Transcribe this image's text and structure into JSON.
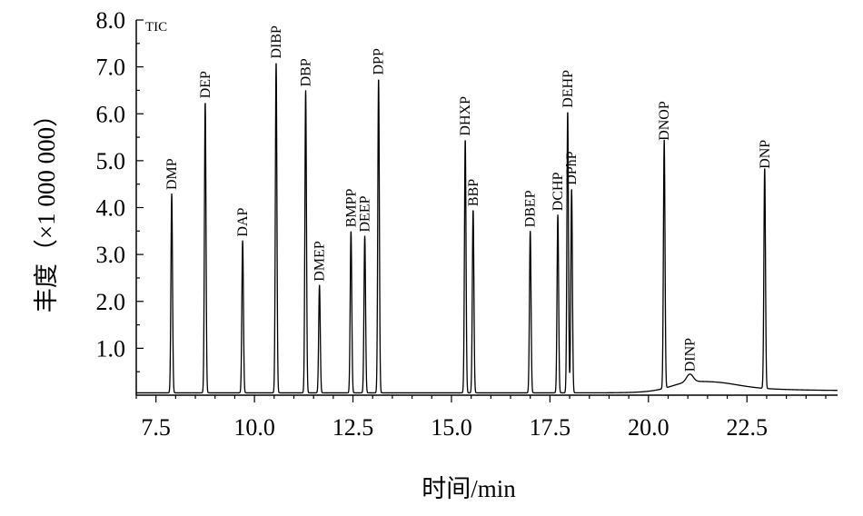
{
  "chart_data": {
    "type": "line",
    "annotation": "TIC",
    "xlabel": "时间/min",
    "ylabel": "丰度（×1 000 000）",
    "xlim": [
      7.0,
      24.8
    ],
    "ylim": [
      0,
      8.0
    ],
    "xticks": [
      7.5,
      10.0,
      12.5,
      15.0,
      17.5,
      20.0,
      22.5
    ],
    "xtick_labels": [
      "7.5",
      "10.0",
      "12.5",
      "15.0",
      "17.5",
      "20.0",
      "22.5"
    ],
    "yticks": [
      1.0,
      2.0,
      3.0,
      4.0,
      5.0,
      6.0,
      7.0,
      8.0
    ],
    "ytick_labels": [
      "1.0",
      "2.0",
      "3.0",
      "4.0",
      "5.0",
      "6.0",
      "7.0",
      "8.0"
    ],
    "baseline": 0.05,
    "peaks": [
      {
        "label": "DMP",
        "x": 7.9,
        "y": 4.3
      },
      {
        "label": "DEP",
        "x": 8.75,
        "y": 6.25
      },
      {
        "label": "DAP",
        "x": 9.7,
        "y": 3.3
      },
      {
        "label": "DIBP",
        "x": 10.55,
        "y": 7.1
      },
      {
        "label": "DBP",
        "x": 11.3,
        "y": 6.5
      },
      {
        "label": "DMEP",
        "x": 11.65,
        "y": 2.35
      },
      {
        "label": "BMPP",
        "x": 12.45,
        "y": 3.5
      },
      {
        "label": "DEEP",
        "x": 12.8,
        "y": 3.4
      },
      {
        "label": "DPP",
        "x": 13.15,
        "y": 6.75
      },
      {
        "label": "DHXP",
        "x": 15.35,
        "y": 5.45
      },
      {
        "label": "BBP",
        "x": 15.55,
        "y": 3.95
      },
      {
        "label": "DBEP",
        "x": 17.0,
        "y": 3.5
      },
      {
        "label": "DCHP",
        "x": 17.7,
        "y": 3.85
      },
      {
        "label": "DEHP",
        "x": 17.95,
        "y": 6.05
      },
      {
        "label": "DPhP",
        "x": 18.05,
        "y": 4.4
      },
      {
        "label": "DNOP",
        "x": 20.4,
        "y": 5.35
      },
      {
        "label": "DINP",
        "x": 21.05,
        "y": 0.42
      },
      {
        "label": "DNP",
        "x": 22.95,
        "y": 4.75
      }
    ]
  }
}
